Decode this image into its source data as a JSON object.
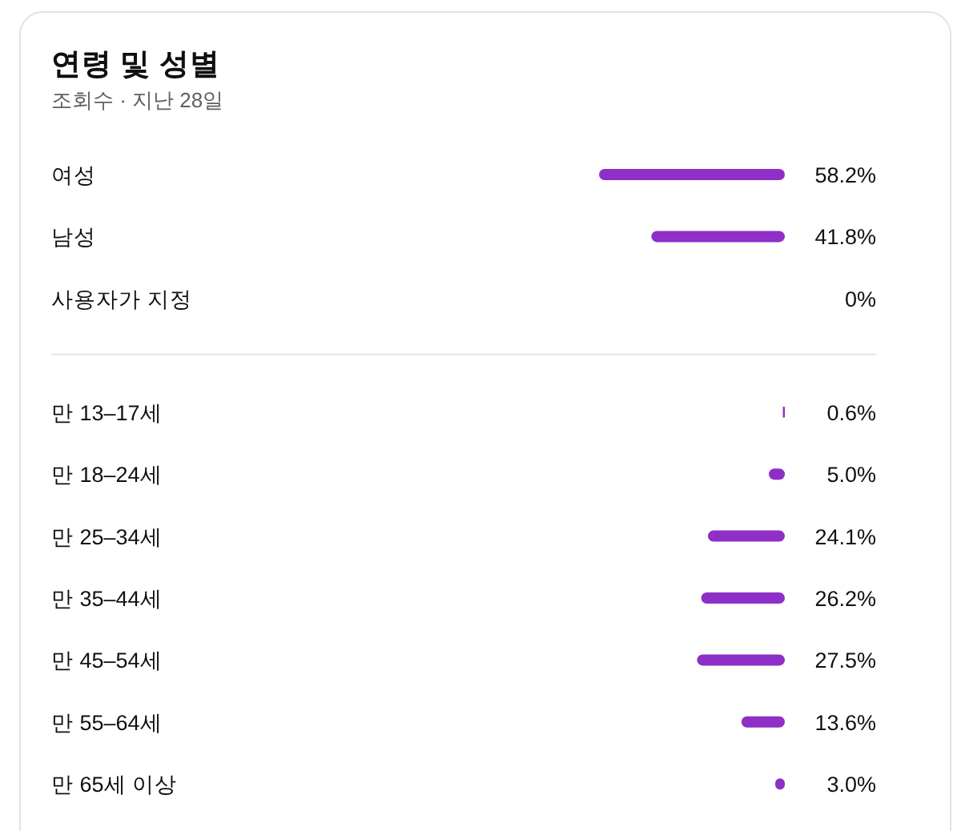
{
  "chart_data": [
    {
      "type": "bar",
      "orientation": "horizontal",
      "title": "연령 및 성별",
      "subtitle": "조회수 · 지난 28일",
      "categories": [
        "여성",
        "남성",
        "사용자가 지정"
      ],
      "values": [
        58.2,
        41.8,
        0
      ],
      "value_labels": [
        "58.2%",
        "41.8%",
        "0%"
      ],
      "color": "#8e2fc8"
    },
    {
      "type": "bar",
      "orientation": "horizontal",
      "categories": [
        "만 13–17세",
        "만 18–24세",
        "만 25–34세",
        "만 35–44세",
        "만 45–54세",
        "만 55–64세",
        "만 65세 이상"
      ],
      "values": [
        0.6,
        5.0,
        24.1,
        26.2,
        27.5,
        13.6,
        3.0
      ],
      "value_labels": [
        "0.6%",
        "5.0%",
        "24.1%",
        "26.2%",
        "27.5%",
        "13.6%",
        "3.0%"
      ],
      "color": "#8e2fc8"
    }
  ]
}
